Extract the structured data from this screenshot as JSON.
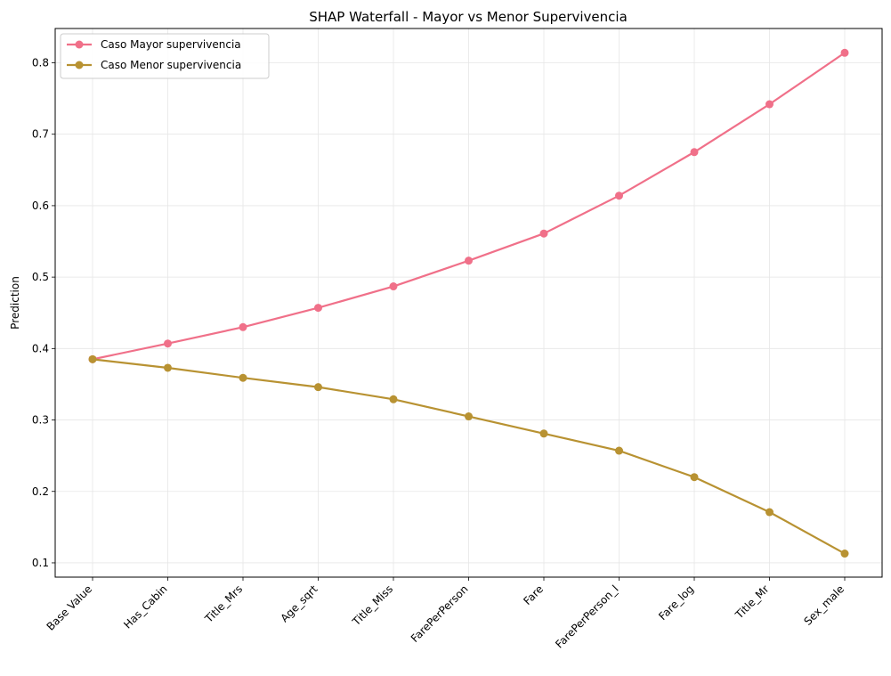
{
  "chart_data": {
    "type": "line",
    "title": "SHAP Waterfall - Mayor vs Menor Supervivencia",
    "xlabel": "",
    "ylabel": "Prediction",
    "categories": [
      "Base Value",
      "Has_Cabin",
      "Title_Mrs",
      "Age_sqrt",
      "Title_Miss",
      "FarePerPerson",
      "Fare",
      "FarePerPerson_l",
      "Fare_log",
      "Title_Mr",
      "Sex_male"
    ],
    "series": [
      {
        "name": "Caso Mayor supervivencia",
        "color": "#f07089",
        "values": [
          0.385,
          0.407,
          0.43,
          0.457,
          0.487,
          0.523,
          0.561,
          0.614,
          0.675,
          0.742,
          0.814
        ]
      },
      {
        "name": "Caso Menor supervivencia",
        "color": "#b89232",
        "values": [
          0.385,
          0.373,
          0.359,
          0.346,
          0.329,
          0.305,
          0.281,
          0.257,
          0.22,
          0.171,
          0.113
        ]
      }
    ],
    "yticks": [
      "0.1",
      "0.2",
      "0.3",
      "0.4",
      "0.5",
      "0.6",
      "0.7",
      "0.8"
    ],
    "ylim": [
      0.08,
      0.848
    ],
    "grid": true,
    "legend_position": "upper-left"
  }
}
